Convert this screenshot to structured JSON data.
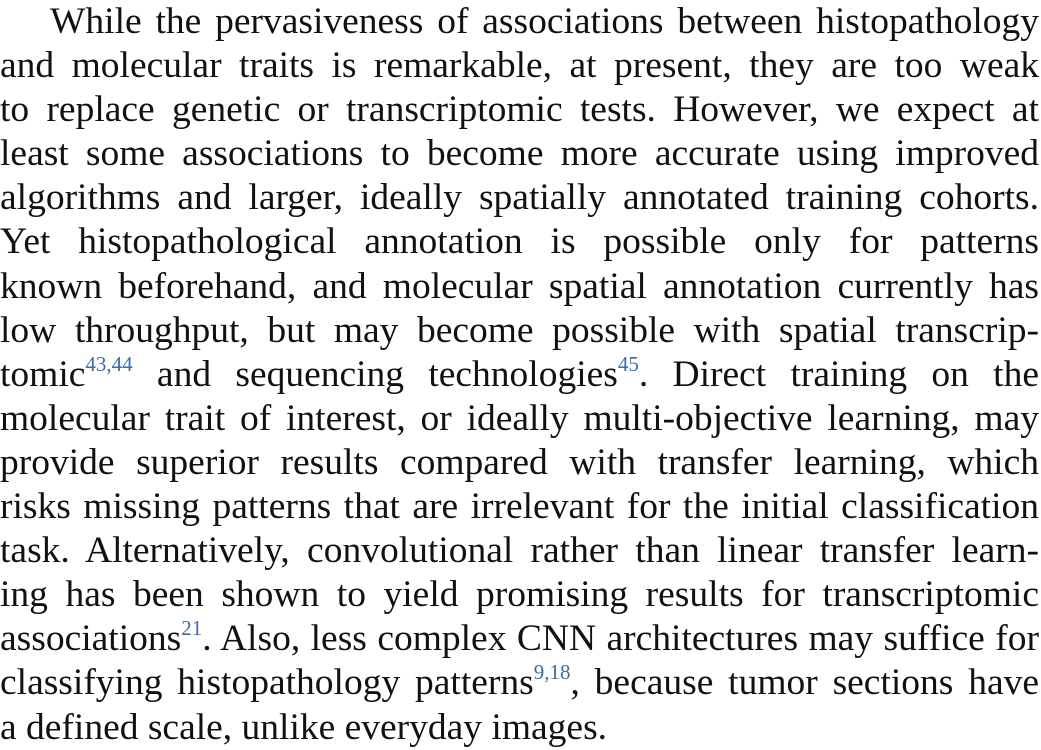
{
  "paragraph": {
    "lines": [
      "While the pervasiveness of associations between histopathology",
      "and molecular traits is remarkable, at present, they are too weak",
      "to replace genetic or transcriptomic tests. However, we expect at",
      "least some associations to become more accurate using improved",
      "algorithms and larger, ideally spatially annotated training cohorts.",
      "Yet histopathological annotation is possible only for patterns",
      "known beforehand, and molecular spatial annotation currently has",
      "low throughput, but may become possible with spatial transcrip-",
      {
        "a": "tomic",
        "ref1": "43,44",
        "b": " and sequencing technologies",
        "ref2": "45",
        "c": ". Direct training on the"
      },
      "molecular trait of interest, or ideally multi-objective learning, may",
      "provide superior results compared with transfer learning, which",
      "risks missing patterns that are irrelevant for the initial classification",
      "task. Alternatively, convolutional rather than linear transfer learn-",
      "ing has been shown to yield promising results for transcriptomic",
      {
        "a": "associations",
        "ref1": "21",
        "b": ". Also, less complex CNN architectures may suffice for"
      },
      {
        "a": "classifying histopathology patterns",
        "ref1": "9,18",
        "b": ", because tumor sections have"
      },
      "a defined scale, unlike everyday images."
    ]
  }
}
